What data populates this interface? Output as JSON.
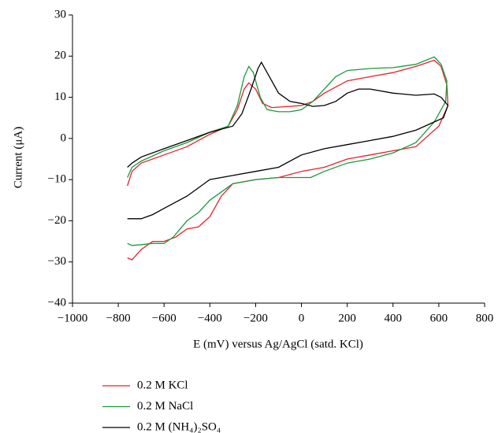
{
  "chart_data": {
    "type": "line",
    "xlabel": "E (mV) versus Ag/AgCl (satd. KCl)",
    "ylabel": "Current (μA)",
    "xlim": [
      -1000,
      800
    ],
    "ylim": [
      -40,
      30
    ],
    "xticks": [
      {
        "value": -1000,
        "label": "−1000"
      },
      {
        "value": -800,
        "label": "−800"
      },
      {
        "value": -600,
        "label": "−600"
      },
      {
        "value": -400,
        "label": "−400"
      },
      {
        "value": -200,
        "label": "−200"
      },
      0,
      200,
      400,
      600,
      800
    ],
    "yticks": [
      {
        "value": -40,
        "label": "−40"
      },
      {
        "value": -30,
        "label": "−30"
      },
      {
        "value": -20,
        "label": "−20"
      },
      {
        "value": -10,
        "label": "−10"
      },
      0,
      10,
      20,
      30
    ],
    "grid": false,
    "legend": "bottom",
    "series": [
      {
        "name": "0.2 M KCl",
        "color": "#e8212a",
        "x": [
          -760,
          -740,
          -700,
          -600,
          -500,
          -400,
          -320,
          -280,
          -250,
          -230,
          -200,
          -170,
          -130,
          -50,
          0,
          50,
          100,
          200,
          300,
          400,
          500,
          580,
          610,
          635,
          640,
          600,
          500,
          400,
          300,
          200,
          100,
          0,
          -100,
          -200,
          -300,
          -350,
          -400,
          -450,
          -500,
          -550,
          -600,
          -650,
          -700,
          -740,
          -760
        ],
        "values": [
          -11.5,
          -8,
          -6,
          -4,
          -2,
          1,
          3,
          7,
          12,
          13.5,
          12,
          8.5,
          7.5,
          7.8,
          8,
          9,
          11,
          14,
          15,
          16,
          17.5,
          19,
          17.5,
          13,
          8,
          3,
          -2,
          -3,
          -4,
          -5,
          -7,
          -8,
          -9.5,
          -10,
          -11,
          -14,
          -19,
          -21.5,
          -22,
          -24,
          -25,
          -25,
          -27,
          -29.5,
          -29
        ]
      },
      {
        "name": "0.2 M NaCl",
        "color": "#1a9a3c",
        "x": [
          -760,
          -740,
          -700,
          -600,
          -500,
          -400,
          -320,
          -280,
          -250,
          -230,
          -210,
          -180,
          -150,
          -100,
          -50,
          0,
          50,
          100,
          150,
          200,
          300,
          400,
          500,
          580,
          610,
          635,
          630,
          580,
          500,
          400,
          300,
          200,
          100,
          40,
          -100,
          -200,
          -300,
          -350,
          -400,
          -450,
          -500,
          -560,
          -600,
          -650,
          -700,
          -740,
          -760
        ],
        "values": [
          -9.5,
          -7,
          -5.5,
          -3,
          -1,
          1.5,
          3,
          8,
          15,
          17.5,
          16,
          10,
          7,
          6.5,
          6.5,
          7,
          9,
          12,
          15,
          16.5,
          17,
          17.2,
          18,
          19.8,
          18,
          14,
          9,
          4,
          -1,
          -3.5,
          -5,
          -6,
          -8,
          -9.5,
          -9.5,
          -10,
          -11,
          -13,
          -15,
          -18,
          -20,
          -24,
          -25.5,
          -25.5,
          -25.8,
          -26,
          -25.5
        ]
      },
      {
        "name": "0.2 M (NH₄)₂SO₄",
        "color": "#000000",
        "x": [
          -760,
          -740,
          -700,
          -600,
          -500,
          -400,
          -300,
          -260,
          -220,
          -190,
          -175,
          -150,
          -100,
          -50,
          0,
          50,
          100,
          150,
          200,
          250,
          300,
          400,
          500,
          580,
          610,
          640,
          620,
          580,
          500,
          400,
          300,
          200,
          100,
          0,
          -100,
          -200,
          -300,
          -400,
          -450,
          -500,
          -600,
          -650,
          -700,
          -760
        ],
        "values": [
          -7,
          -6,
          -4.5,
          -2.5,
          -0.5,
          1.5,
          3,
          6,
          12,
          17,
          18.5,
          16,
          11,
          9,
          8.5,
          7.8,
          8,
          9,
          11,
          12,
          12,
          11,
          10.5,
          10.8,
          10,
          8,
          5,
          4,
          2,
          0.5,
          -0.5,
          -1.5,
          -2.5,
          -4,
          -7,
          -8,
          -9,
          -10,
          -12,
          -14,
          -17,
          -18.5,
          -19.5,
          -19.5
        ]
      }
    ]
  }
}
